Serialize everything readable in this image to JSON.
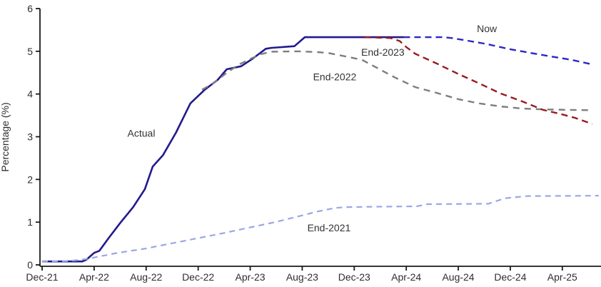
{
  "chart_data": {
    "type": "line",
    "title": "",
    "ylabel": "Percentage (%)",
    "xlabel": "",
    "ylim": [
      0,
      6
    ],
    "yticks": [
      0,
      1,
      2,
      3,
      4,
      5,
      6
    ],
    "x_unit": "months-since-Dec-2021",
    "xlim": [
      0,
      43
    ],
    "grid": false,
    "legend_position": "inline-labels",
    "xticks": [
      {
        "offset": 0,
        "label": "Dec-21"
      },
      {
        "offset": 4,
        "label": "Apr-22"
      },
      {
        "offset": 8,
        "label": "Aug-22"
      },
      {
        "offset": 12,
        "label": "Dec-22"
      },
      {
        "offset": 16,
        "label": "Apr-23"
      },
      {
        "offset": 20,
        "label": "Aug-23"
      },
      {
        "offset": 24,
        "label": "Dec-23"
      },
      {
        "offset": 28,
        "label": "Apr-24"
      },
      {
        "offset": 32,
        "label": "Aug-24"
      },
      {
        "offset": 36,
        "label": "Dec-24"
      },
      {
        "offset": 40,
        "label": "Apr-25"
      }
    ],
    "colors": {
      "axis": "#1a1a1a",
      "tick_text": "#2e2e2e",
      "label_text": "#333333"
    },
    "series": [
      {
        "name": "Actual",
        "label": "Actual",
        "color": "#221a8e",
        "style": "solid",
        "width": 2.6,
        "label_pos": [
          7.63,
          3.08
        ],
        "points": [
          [
            0,
            0.08
          ],
          [
            3.1,
            0.08
          ],
          [
            3.4,
            0.12
          ],
          [
            4.0,
            0.28
          ],
          [
            4.4,
            0.33
          ],
          [
            5.1,
            0.62
          ],
          [
            6.0,
            0.98
          ],
          [
            7.0,
            1.35
          ],
          [
            7.9,
            1.77
          ],
          [
            8.5,
            2.3
          ],
          [
            9.3,
            2.57
          ],
          [
            10.3,
            3.1
          ],
          [
            11.4,
            3.78
          ],
          [
            12.5,
            4.1
          ],
          [
            13.5,
            4.33
          ],
          [
            14.2,
            4.58
          ],
          [
            15.3,
            4.65
          ],
          [
            16.2,
            4.83
          ],
          [
            17.2,
            5.06
          ],
          [
            17.6,
            5.08
          ],
          [
            19.4,
            5.12
          ],
          [
            20.2,
            5.33
          ],
          [
            27.8,
            5.33
          ]
        ]
      },
      {
        "name": "End-2021",
        "label": "End-2021",
        "color": "#9aa7e3",
        "style": "dashed",
        "dash": "8 6",
        "width": 2.2,
        "label_pos": [
          22.06,
          0.87
        ],
        "points": [
          [
            0,
            0.08
          ],
          [
            2.0,
            0.09
          ],
          [
            3.0,
            0.12
          ],
          [
            3.8,
            0.16
          ],
          [
            4.8,
            0.22
          ],
          [
            5.8,
            0.28
          ],
          [
            7.9,
            0.38
          ],
          [
            9.9,
            0.5
          ],
          [
            11.9,
            0.62
          ],
          [
            13.9,
            0.74
          ],
          [
            15.9,
            0.87
          ],
          [
            17.9,
            1.0
          ],
          [
            19.9,
            1.15
          ],
          [
            21.2,
            1.25
          ],
          [
            22.5,
            1.33
          ],
          [
            23.2,
            1.35
          ],
          [
            25.3,
            1.36
          ],
          [
            28.8,
            1.37
          ],
          [
            29.6,
            1.42
          ],
          [
            34.3,
            1.43
          ],
          [
            35.6,
            1.56
          ],
          [
            37.2,
            1.61
          ],
          [
            42.8,
            1.62
          ]
        ]
      },
      {
        "name": "End-2022",
        "label": "End-2022",
        "color": "#7e7e7e",
        "style": "dashed",
        "dash": "9 7",
        "width": 2.4,
        "label_pos": [
          22.5,
          4.4
        ],
        "points": [
          [
            12.3,
            4.1
          ],
          [
            13.3,
            4.28
          ],
          [
            14.2,
            4.5
          ],
          [
            15.2,
            4.7
          ],
          [
            16.0,
            4.82
          ],
          [
            16.8,
            4.93
          ],
          [
            17.6,
            4.99
          ],
          [
            19.7,
            5.0
          ],
          [
            21.2,
            4.98
          ],
          [
            22.0,
            4.96
          ],
          [
            23.0,
            4.9
          ],
          [
            24.6,
            4.8
          ],
          [
            25.7,
            4.62
          ],
          [
            27.1,
            4.39
          ],
          [
            28.7,
            4.16
          ],
          [
            30.3,
            4.03
          ],
          [
            32.0,
            3.88
          ],
          [
            33.6,
            3.78
          ],
          [
            35.2,
            3.71
          ],
          [
            36.9,
            3.66
          ],
          [
            38.5,
            3.64
          ],
          [
            40.2,
            3.63
          ],
          [
            42.2,
            3.62
          ]
        ]
      },
      {
        "name": "End-2023",
        "label": "End-2023",
        "color": "#9a1b1e",
        "style": "dashed",
        "dash": "9 6",
        "width": 2.4,
        "label_pos": [
          26.2,
          4.98
        ],
        "points": [
          [
            24.8,
            5.33
          ],
          [
            26.8,
            5.31
          ],
          [
            27.5,
            5.24
          ],
          [
            28.0,
            5.1
          ],
          [
            28.7,
            4.94
          ],
          [
            30.3,
            4.72
          ],
          [
            32.0,
            4.47
          ],
          [
            33.6,
            4.25
          ],
          [
            35.2,
            4.02
          ],
          [
            36.9,
            3.83
          ],
          [
            38.5,
            3.63
          ],
          [
            39.9,
            3.53
          ],
          [
            41.0,
            3.44
          ],
          [
            42.3,
            3.3
          ]
        ]
      },
      {
        "name": "Now",
        "label": "Now",
        "color": "#2a28c4",
        "style": "dashed",
        "dash": "9 6",
        "width": 2.4,
        "label_pos": [
          34.2,
          5.53
        ],
        "points": [
          [
            27.8,
            5.33
          ],
          [
            30.8,
            5.33
          ],
          [
            31.5,
            5.31
          ],
          [
            32.5,
            5.26
          ],
          [
            34.2,
            5.17
          ],
          [
            35.8,
            5.06
          ],
          [
            37.4,
            4.97
          ],
          [
            39.1,
            4.88
          ],
          [
            40.7,
            4.8
          ],
          [
            42.2,
            4.7
          ]
        ]
      }
    ]
  }
}
